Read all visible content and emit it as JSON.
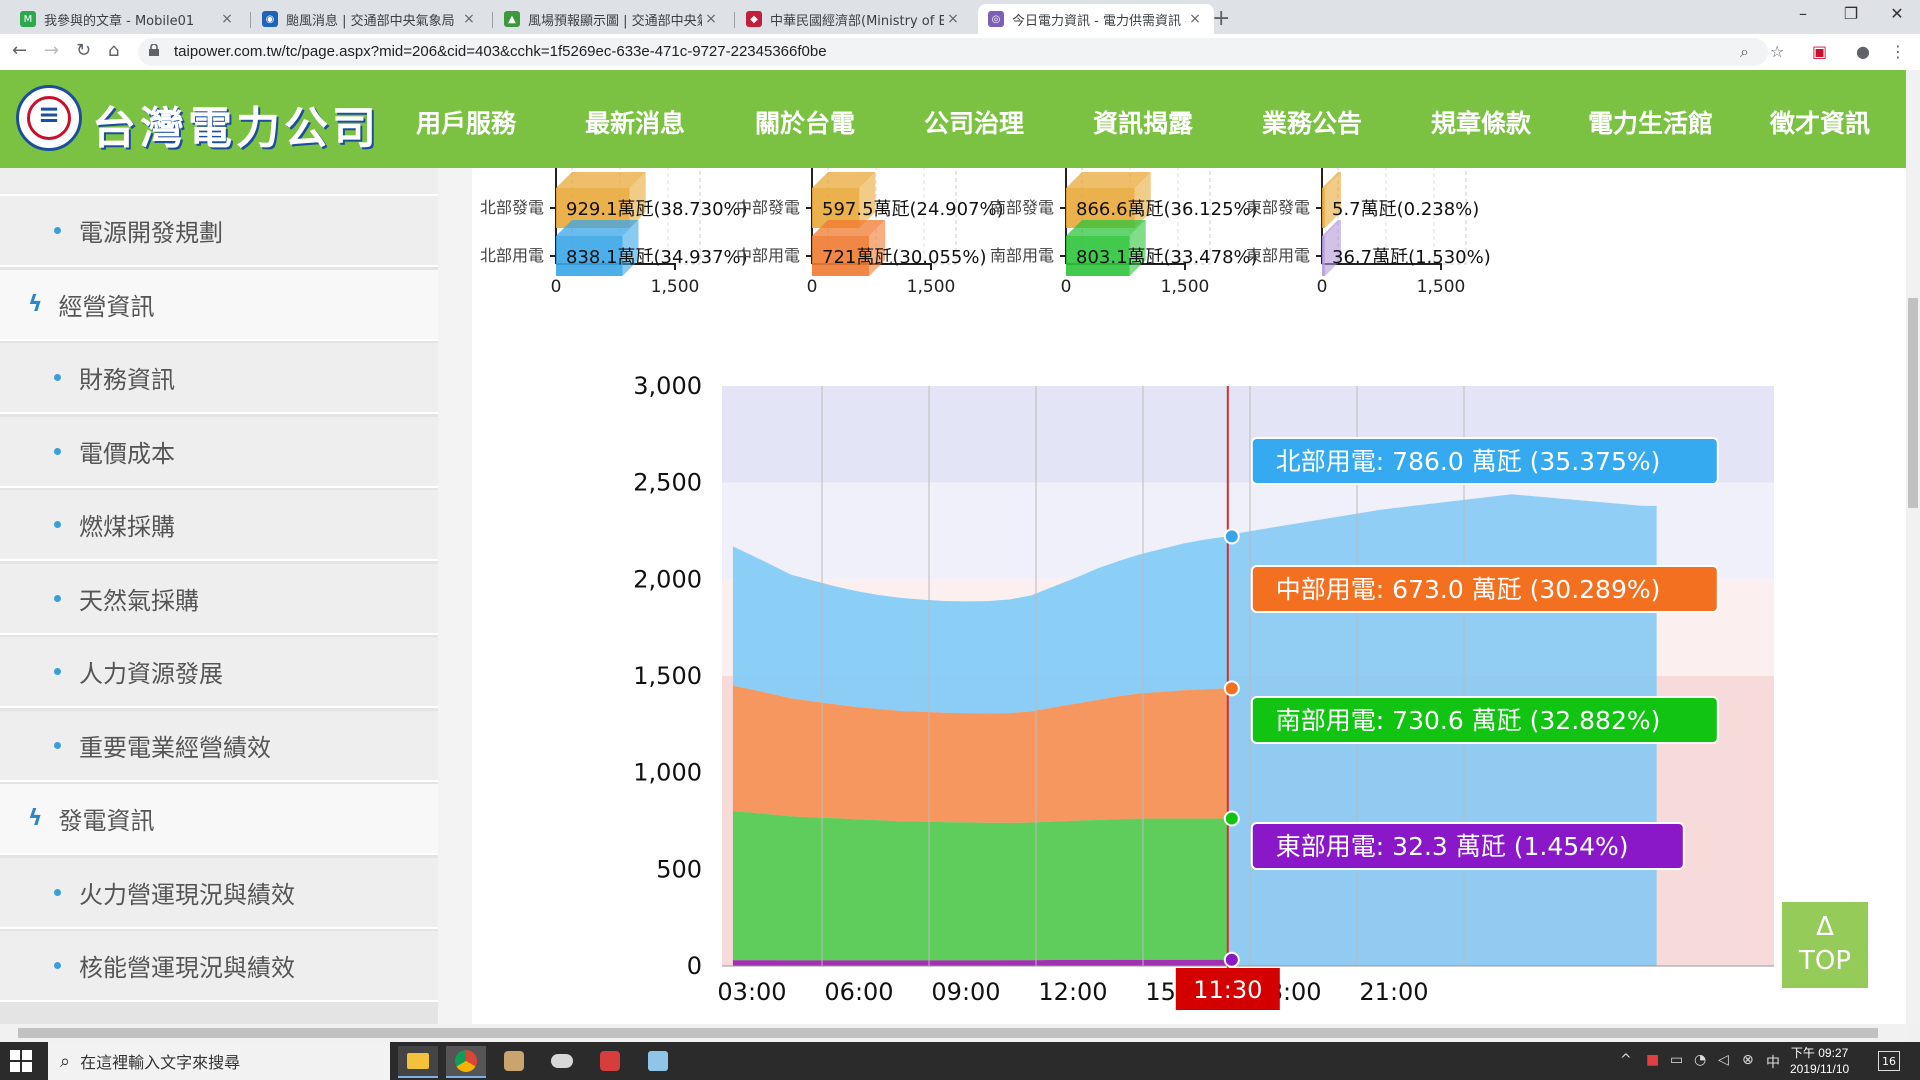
{
  "browser": {
    "tabs": [
      {
        "title": "我參與的文章 - Mobile01",
        "favicon_color": "#2da84f",
        "fav": "M"
      },
      {
        "title": "颱風消息 | 交通部中央氣象局",
        "favicon_color": "#1d63b8",
        "fav": "◉"
      },
      {
        "title": "風場預報顯示圖 | 交通部中央氣象",
        "favicon_color": "#3c9a3c",
        "fav": "▲"
      },
      {
        "title": "中華民國經濟部(Ministry of Econ",
        "favicon_color": "#c21f3a",
        "fav": "◆"
      },
      {
        "title": "今日電力資訊 - 電力供需資訊 - 台",
        "favicon_color": "#7d5fb8",
        "fav": "◎"
      }
    ],
    "close_glyph": "×",
    "new_tab_glyph": "+",
    "window_controls": [
      "–",
      "❐",
      "✕"
    ],
    "url": "taipower.com.tw/tc/page.aspx?mid=206&cid=403&cchk=1f5269ec-633e-471c-9727-22345366f0be"
  },
  "header": {
    "logo_text": "台灣電力公司",
    "nav": [
      "用戶服務",
      "最新消息",
      "關於台電",
      "公司治理",
      "資訊揭露",
      "業務公告",
      "規章條款",
      "電力生活館",
      "徵才資訊"
    ]
  },
  "sidebar": {
    "items": [
      {
        "label": "電源開發規劃",
        "type": "sub"
      },
      {
        "label": "經營資訊",
        "type": "head"
      },
      {
        "label": "財務資訊",
        "type": "sub"
      },
      {
        "label": "電價成本",
        "type": "sub"
      },
      {
        "label": "燃煤採購",
        "type": "sub"
      },
      {
        "label": "天然氣採購",
        "type": "sub"
      },
      {
        "label": "人力資源發展",
        "type": "sub"
      },
      {
        "label": "重要電業經營績效",
        "type": "sub"
      },
      {
        "label": "發電資訊",
        "type": "head"
      },
      {
        "label": "火力營運現況與績效",
        "type": "sub"
      },
      {
        "label": "核能營運現況與績效",
        "type": "sub"
      }
    ]
  },
  "top_button": {
    "arrow": "Δ",
    "label": "TOP"
  },
  "taskbar": {
    "search_placeholder": "在這裡輸入文字來搜尋",
    "time": "下午 09:27",
    "date": "2019/11/10",
    "notification_count": "16"
  },
  "chart_data": [
    {
      "type": "bar",
      "region": "北部",
      "categories": [
        "北部發電",
        "北部用電"
      ],
      "values": [
        929.1,
        838.1
      ],
      "labels": [
        "929.1萬瓩(38.730%)",
        "838.1萬瓩(34.937%)"
      ],
      "colors": [
        "#e8a838",
        "#3aa6e8"
      ],
      "xlim": [
        0,
        1500
      ],
      "xticks": [
        "0",
        "1,500"
      ]
    },
    {
      "type": "bar",
      "region": "中部",
      "categories": [
        "中部發電",
        "中部用電"
      ],
      "values": [
        597.5,
        721
      ],
      "labels": [
        "597.5萬瓩(24.907%)",
        "721萬瓩(30.055%)"
      ],
      "colors": [
        "#e8a838",
        "#f07a30"
      ],
      "xlim": [
        0,
        1500
      ],
      "xticks": [
        "0",
        "1,500"
      ]
    },
    {
      "type": "bar",
      "region": "南部",
      "categories": [
        "南部發電",
        "南部用電"
      ],
      "values": [
        866.6,
        803.1
      ],
      "labels": [
        "866.6萬瓩(36.125%)",
        "803.1萬瓩(33.478%)"
      ],
      "colors": [
        "#e8a838",
        "#2ec43c"
      ],
      "xlim": [
        0,
        1500
      ],
      "xticks": [
        "0",
        "1,500"
      ]
    },
    {
      "type": "bar",
      "region": "東部",
      "categories": [
        "東部發電",
        "東部用電"
      ],
      "values": [
        5.7,
        36.7
      ],
      "labels": [
        "5.7萬瓩(0.238%)",
        "36.7萬瓩(1.530%)"
      ],
      "colors": [
        "#e8a838",
        "#b59ad8"
      ],
      "xlim": [
        0,
        1500
      ],
      "xticks": [
        "0",
        "1,500"
      ]
    },
    {
      "type": "area",
      "stacked": true,
      "x": [
        "00:10",
        "00:30",
        "01:00",
        "01:30",
        "02:00",
        "02:30",
        "03:00",
        "03:30",
        "04:00",
        "04:30",
        "05:00",
        "05:30",
        "06:00",
        "06:30",
        "07:00",
        "07:30",
        "08:00",
        "08:30",
        "09:00",
        "09:30",
        "10:00",
        "10:30",
        "11:00",
        "11:30"
      ],
      "series": [
        {
          "name": "東部用電",
          "color": "#9c27b0",
          "values": [
            30,
            30,
            30,
            29,
            29,
            29,
            29,
            29,
            29,
            29,
            29,
            29,
            29,
            30,
            30,
            31,
            31,
            31,
            32,
            32,
            32,
            32,
            32,
            32.3
          ]
        },
        {
          "name": "南部用電",
          "color": "#55cc55",
          "values": [
            770,
            765,
            755,
            745,
            740,
            735,
            730,
            725,
            720,
            718,
            715,
            714,
            712,
            710,
            712,
            716,
            720,
            724,
            728,
            730,
            730,
            730,
            730,
            730.6
          ]
        },
        {
          "name": "中部用電",
          "color": "#f7945a",
          "values": [
            650,
            640,
            625,
            610,
            600,
            590,
            580,
            575,
            570,
            568,
            566,
            565,
            566,
            568,
            575,
            590,
            605,
            620,
            635,
            648,
            656,
            664,
            670,
            673
          ]
        },
        {
          "name": "北部用電",
          "color": "#85ccf5",
          "values": [
            720,
            700,
            670,
            640,
            625,
            610,
            600,
            590,
            585,
            580,
            578,
            578,
            580,
            588,
            600,
            625,
            650,
            680,
            700,
            720,
            740,
            760,
            775,
            786
          ]
        }
      ],
      "future_profile": {
        "x": [
          "11:30",
          "15:00",
          "18:00",
          "21:00"
        ],
        "total": [
          2230,
          2360,
          2440,
          2380
        ]
      },
      "ylim": [
        0,
        3000
      ],
      "yticks": [
        "0",
        "500",
        "1,000",
        "1,500",
        "2,000",
        "2,500",
        "3,000"
      ],
      "xticks": [
        "03:00",
        "06:00",
        "09:00",
        "12:00",
        "15:00",
        "18:00",
        "21:00"
      ],
      "current_time": "11:30",
      "tooltips": [
        {
          "text": "北部用電: 786.0 萬瓩 (35.375%)",
          "color": "#35aaf0"
        },
        {
          "text": "中部用電: 673.0 萬瓩 (30.289%)",
          "color": "#f37021"
        },
        {
          "text": "南部用電: 730.6 萬瓩 (32.882%)",
          "color": "#12c412"
        },
        {
          "text": "東部用電: 32.3 萬瓩 (1.454%)",
          "color": "#8a18c8"
        }
      ]
    }
  ]
}
